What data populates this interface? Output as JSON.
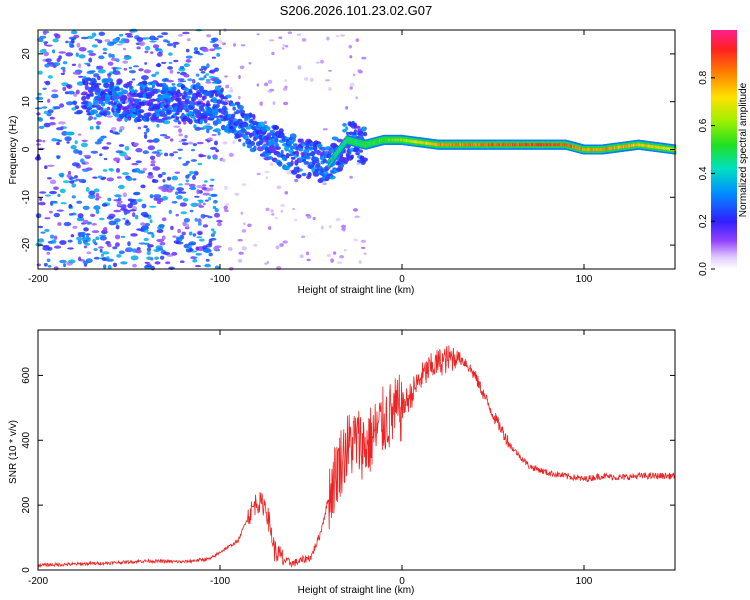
{
  "title": "S206.2026.101.23.02.G07",
  "chart_data": [
    {
      "type": "heatmap",
      "name": "spectrogram",
      "xlabel": "Height of straight line (km)",
      "ylabel": "Frequency (Hz)",
      "xlim": [
        -200,
        150
      ],
      "ylim": [
        -25,
        25
      ],
      "xticks": [
        "-200",
        "-100",
        "0",
        "100"
      ],
      "xtick_values": [
        -200,
        -100,
        0,
        100
      ],
      "yticks": [
        "20",
        "10",
        "0",
        "-10",
        "-20"
      ],
      "ytick_values": [
        20,
        10,
        0,
        -10,
        -20
      ],
      "colorbar": {
        "label": "Normalized spectral amplitude",
        "range": [
          0,
          1
        ],
        "ticks": [
          "0.0",
          "0.2",
          "0.4",
          "0.6",
          "0.8"
        ],
        "tick_values": [
          0.0,
          0.2,
          0.4,
          0.6,
          0.8
        ]
      },
      "ridge": {
        "description_points_x": [
          -165,
          -150,
          -120,
          -100,
          -85,
          -70,
          -55,
          -40,
          -30,
          -20,
          -10,
          0,
          20,
          50,
          80,
          90,
          100,
          110,
          130,
          150
        ],
        "description_points_y": [
          11,
          10,
          10,
          9,
          4,
          1,
          -2,
          -3,
          2,
          1,
          2,
          2,
          1,
          1,
          1,
          1,
          0,
          0,
          1,
          0
        ],
        "amplitude": [
          0.2,
          0.25,
          0.25,
          0.3,
          0.35,
          0.3,
          0.35,
          0.35,
          0.45,
          0.5,
          0.55,
          0.6,
          0.8,
          0.85,
          0.9,
          0.85,
          0.8,
          0.8,
          0.75,
          0.7
        ]
      }
    },
    {
      "type": "line",
      "name": "snr",
      "xlabel": "Height of straight line (km)",
      "ylabel": "SNR (10 * v/v)",
      "xlim": [
        -200,
        150
      ],
      "ylim": [
        0,
        740
      ],
      "xticks": [
        "-200",
        "-100",
        "0",
        "100"
      ],
      "xtick_values": [
        -200,
        -100,
        0,
        100
      ],
      "yticks": [
        "0",
        "200",
        "400",
        "600"
      ],
      "ytick_values": [
        0,
        200,
        400,
        600
      ],
      "color": "#ee2222",
      "series": [
        {
          "name": "SNR",
          "x": [
            -200,
            -180,
            -160,
            -140,
            -120,
            -105,
            -100,
            -90,
            -85,
            -80,
            -75,
            -72,
            -70,
            -65,
            -60,
            -50,
            -45,
            -40,
            -35,
            -30,
            -25,
            -20,
            -15,
            -10,
            -5,
            0,
            5,
            10,
            15,
            20,
            25,
            30,
            35,
            40,
            45,
            50,
            60,
            70,
            80,
            90,
            100,
            110,
            120,
            130,
            140,
            150
          ],
          "y": [
            15,
            18,
            22,
            28,
            25,
            35,
            55,
            90,
            160,
            210,
            200,
            120,
            60,
            30,
            20,
            40,
            110,
            230,
            320,
            380,
            400,
            380,
            420,
            460,
            480,
            500,
            540,
            590,
            620,
            640,
            650,
            660,
            640,
            600,
            540,
            480,
            380,
            320,
            300,
            290,
            280,
            290,
            285,
            290,
            290,
            290
          ]
        }
      ]
    }
  ]
}
